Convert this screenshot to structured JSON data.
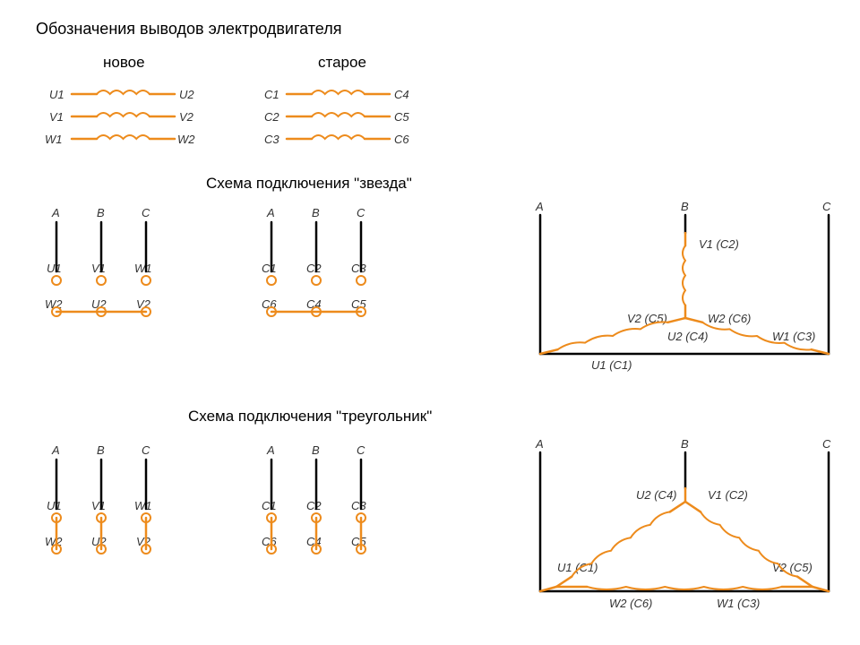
{
  "colors": {
    "wire": "#ed8b1c",
    "black": "#000000",
    "text": "#222222",
    "term_fill": "#ffffff"
  },
  "stroke": {
    "wire": 2.5,
    "black": 2.5,
    "coil": 2
  },
  "title": "Обозначения выводов электродвигателя",
  "col_new": "новое",
  "col_old": "старое",
  "sect_star": "Схема подключения \"звезда\"",
  "sect_delta": "Схема подключения \"треугольник\"",
  "windings_new": [
    {
      "l": "U1",
      "r": "U2"
    },
    {
      "l": "V1",
      "r": "V2"
    },
    {
      "l": "W1",
      "r": "W2"
    }
  ],
  "windings_old": [
    {
      "l": "C1",
      "r": "C4"
    },
    {
      "l": "C2",
      "r": "C5"
    },
    {
      "l": "C3",
      "r": "C6"
    }
  ],
  "phases": [
    "A",
    "B",
    "C"
  ],
  "star": {
    "new_top": [
      "U1",
      "V1",
      "W1"
    ],
    "new_bot": [
      "W2",
      "U2",
      "V2"
    ],
    "old_top": [
      "C1",
      "C2",
      "C3"
    ],
    "old_bot": [
      "C6",
      "C4",
      "C5"
    ],
    "big": {
      "v1": "V1 (C2)",
      "v2": "V2 (C5)",
      "u2": "U2 (C4)",
      "u1": "U1 (C1)",
      "w2": "W2 (C6)",
      "w1": "W1 (C3)"
    }
  },
  "delta": {
    "new_top": [
      "U1",
      "V1",
      "W1"
    ],
    "new_bot": [
      "W2",
      "U2",
      "V2"
    ],
    "old_top": [
      "C1",
      "C2",
      "C3"
    ],
    "old_bot": [
      "C6",
      "C4",
      "C5"
    ],
    "big": {
      "u2": "U2 (C4)",
      "v1": "V1 (C2)",
      "u1": "U1 (C1)",
      "v2": "V2 (C5)",
      "w2": "W2 (C6)",
      "w1": "W1 (C3)"
    }
  },
  "term_r": 5
}
